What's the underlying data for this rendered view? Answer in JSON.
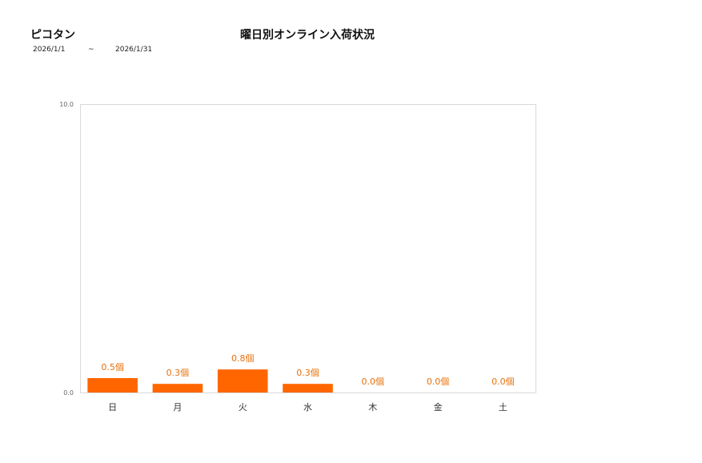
{
  "header": {
    "shop_name": "ピコタン",
    "title": "曜日別オンライン入荷状況",
    "date_from": "2026/1/1",
    "date_sep": "~",
    "date_to": "2026/1/31"
  },
  "colors": {
    "bar": "#ff6600",
    "data_label": "#e8700a",
    "axis_border": "#d9d9d9"
  },
  "chart_data": {
    "type": "bar",
    "title": "曜日別オンライン入荷状況",
    "categories": [
      "日",
      "月",
      "火",
      "水",
      "木",
      "金",
      "土"
    ],
    "values": [
      0.5,
      0.3,
      0.8,
      0.3,
      0.0,
      0.0,
      0.0
    ],
    "data_labels": [
      "0.5個",
      "0.3個",
      "0.8個",
      "0.3個",
      "0.0個",
      "0.0個",
      "0.0個"
    ],
    "ylim": [
      0,
      10
    ],
    "yticks": [
      "0.0",
      "10.0"
    ],
    "xlabel": "",
    "ylabel": "",
    "grid": false,
    "legend": "none"
  }
}
